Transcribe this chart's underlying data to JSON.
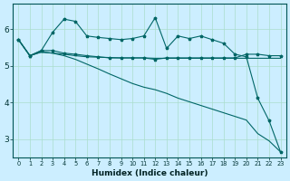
{
  "xlabel": "Humidex (Indice chaleur)",
  "x": [
    0,
    1,
    2,
    3,
    4,
    5,
    6,
    7,
    8,
    9,
    10,
    11,
    12,
    13,
    14,
    15,
    16,
    17,
    18,
    19,
    20,
    21,
    22,
    23
  ],
  "line_jagged_marked": [
    5.72,
    5.28,
    5.42,
    5.92,
    6.28,
    6.22,
    5.82,
    5.78,
    5.75,
    5.72,
    5.75,
    5.82,
    6.32,
    5.48,
    5.82,
    5.75,
    5.82,
    5.72,
    5.62,
    5.32,
    5.25,
    4.12,
    3.5,
    2.65
  ],
  "line_flat_marked": [
    5.72,
    5.28,
    5.42,
    5.42,
    5.35,
    5.32,
    5.28,
    5.25,
    5.22,
    5.22,
    5.22,
    5.22,
    5.18,
    5.22,
    5.22,
    5.22,
    5.22,
    5.22,
    5.22,
    5.22,
    5.32,
    5.32,
    5.28,
    5.28
  ],
  "line_smooth_flat": [
    5.72,
    5.28,
    5.38,
    5.35,
    5.32,
    5.28,
    5.25,
    5.24,
    5.23,
    5.22,
    5.22,
    5.22,
    5.21,
    5.21,
    5.21,
    5.21,
    5.21,
    5.21,
    5.21,
    5.21,
    5.21,
    5.21,
    5.21,
    5.21
  ],
  "line_declining": [
    5.72,
    5.28,
    5.38,
    5.35,
    5.28,
    5.18,
    5.05,
    4.92,
    4.78,
    4.65,
    4.52,
    4.42,
    4.35,
    4.25,
    4.12,
    4.02,
    3.92,
    3.82,
    3.72,
    3.62,
    3.52,
    3.15,
    2.95,
    2.65
  ],
  "bg_color": "#cceeff",
  "grid_color": "#aaddcc",
  "line_color": "#006666",
  "ylim": [
    2.5,
    6.7
  ],
  "yticks": [
    3,
    4,
    5,
    6
  ],
  "xticks": [
    0,
    1,
    2,
    3,
    4,
    5,
    6,
    7,
    8,
    9,
    10,
    11,
    12,
    13,
    14,
    15,
    16,
    17,
    18,
    19,
    20,
    21,
    22,
    23
  ]
}
